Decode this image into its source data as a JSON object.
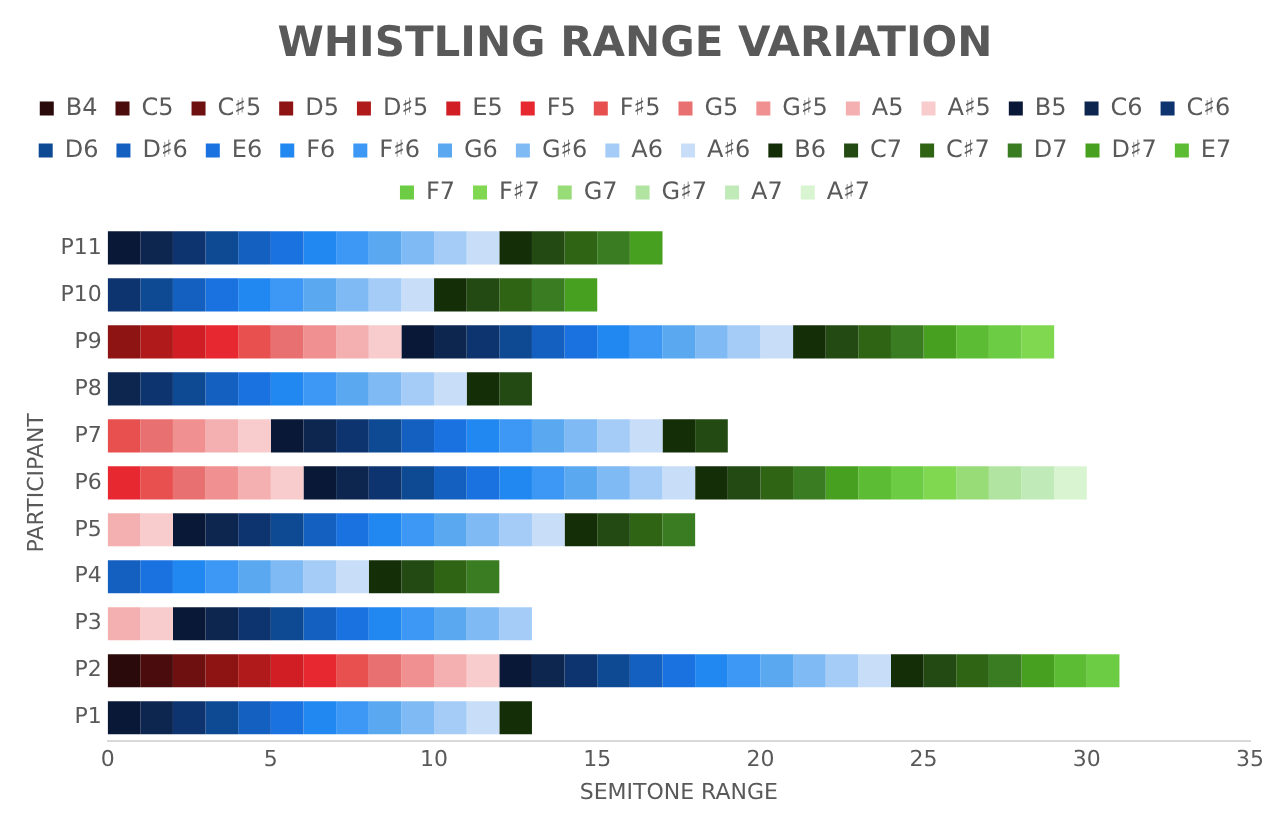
{
  "chart_data": {
    "type": "bar",
    "orientation": "horizontal",
    "stacked": true,
    "title": "WHISTLING RANGE VARIATION",
    "xlabel": "SEMITONE RANGE",
    "ylabel": "PARTICIPANT",
    "categories": [
      "P11",
      "P10",
      "P9",
      "P8",
      "P7",
      "P6",
      "P5",
      "P4",
      "P3",
      "P2",
      "P1"
    ],
    "xlim": [
      0,
      35
    ],
    "xticks": [
      0,
      5,
      10,
      15,
      20,
      25,
      30,
      35
    ],
    "grid": false,
    "legend": "top",
    "series": [
      {
        "name": "B4",
        "color": "#2a0a0a",
        "values": [
          null,
          null,
          null,
          null,
          null,
          null,
          null,
          null,
          null,
          1,
          null
        ]
      },
      {
        "name": "C5",
        "color": "#4a0c0c",
        "values": [
          null,
          null,
          null,
          null,
          null,
          null,
          null,
          null,
          null,
          1,
          null
        ]
      },
      {
        "name": "C♯5",
        "color": "#6e1010",
        "values": [
          null,
          null,
          null,
          null,
          null,
          null,
          null,
          null,
          null,
          1,
          null
        ]
      },
      {
        "name": "D5",
        "color": "#8e1414",
        "values": [
          null,
          null,
          1,
          null,
          null,
          null,
          null,
          null,
          null,
          1,
          null
        ]
      },
      {
        "name": "D♯5",
        "color": "#b01a1a",
        "values": [
          null,
          null,
          1,
          null,
          null,
          null,
          null,
          null,
          null,
          1,
          null
        ]
      },
      {
        "name": "E5",
        "color": "#d01e24",
        "values": [
          null,
          null,
          1,
          null,
          null,
          null,
          null,
          null,
          null,
          1,
          null
        ]
      },
      {
        "name": "F5",
        "color": "#e82830",
        "values": [
          null,
          null,
          1,
          null,
          null,
          1,
          null,
          null,
          null,
          1,
          null
        ]
      },
      {
        "name": "F♯5",
        "color": "#e85050",
        "values": [
          null,
          null,
          1,
          null,
          1,
          1,
          null,
          null,
          null,
          1,
          null
        ]
      },
      {
        "name": "G5",
        "color": "#e87070",
        "values": [
          null,
          null,
          1,
          null,
          1,
          1,
          null,
          null,
          null,
          1,
          null
        ]
      },
      {
        "name": "G♯5",
        "color": "#f09090",
        "values": [
          null,
          null,
          1,
          null,
          1,
          1,
          null,
          null,
          null,
          1,
          null
        ]
      },
      {
        "name": "A5",
        "color": "#f4b0b0",
        "values": [
          null,
          null,
          1,
          null,
          1,
          1,
          1,
          null,
          1,
          1,
          null
        ]
      },
      {
        "name": "A♯5",
        "color": "#f8cccc",
        "values": [
          null,
          null,
          1,
          null,
          1,
          1,
          1,
          null,
          1,
          1,
          null
        ]
      },
      {
        "name": "B5",
        "color": "#0a1838",
        "values": [
          1,
          null,
          1,
          null,
          1,
          1,
          1,
          null,
          1,
          1,
          1
        ]
      },
      {
        "name": "C6",
        "color": "#0c2650",
        "values": [
          1,
          null,
          1,
          1,
          1,
          1,
          1,
          null,
          1,
          1,
          1
        ]
      },
      {
        "name": "C♯6",
        "color": "#0e3470",
        "values": [
          1,
          1,
          1,
          1,
          1,
          1,
          1,
          null,
          1,
          1,
          1
        ]
      },
      {
        "name": "D6",
        "color": "#0e4a94",
        "values": [
          1,
          1,
          1,
          1,
          1,
          1,
          1,
          null,
          1,
          1,
          1
        ]
      },
      {
        "name": "D♯6",
        "color": "#1460c0",
        "values": [
          1,
          1,
          1,
          1,
          1,
          1,
          1,
          1,
          1,
          1,
          1
        ]
      },
      {
        "name": "E6",
        "color": "#1a72e0",
        "values": [
          1,
          1,
          1,
          1,
          1,
          1,
          1,
          1,
          1,
          1,
          1
        ]
      },
      {
        "name": "F6",
        "color": "#2088f0",
        "values": [
          1,
          1,
          1,
          1,
          1,
          1,
          1,
          1,
          1,
          1,
          1
        ]
      },
      {
        "name": "F♯6",
        "color": "#3c98f4",
        "values": [
          1,
          1,
          1,
          1,
          1,
          1,
          1,
          1,
          1,
          1,
          1
        ]
      },
      {
        "name": "G6",
        "color": "#5aa8f0",
        "values": [
          1,
          1,
          1,
          1,
          1,
          1,
          1,
          1,
          1,
          1,
          1
        ]
      },
      {
        "name": "G♯6",
        "color": "#80baf4",
        "values": [
          1,
          1,
          1,
          1,
          1,
          1,
          1,
          1,
          1,
          1,
          1
        ]
      },
      {
        "name": "A6",
        "color": "#a4ccf6",
        "values": [
          1,
          1,
          1,
          1,
          1,
          1,
          1,
          1,
          1,
          1,
          1
        ]
      },
      {
        "name": "A♯6",
        "color": "#c8def8",
        "values": [
          1,
          1,
          1,
          1,
          1,
          1,
          1,
          1,
          null,
          1,
          1
        ]
      },
      {
        "name": "B6",
        "color": "#142e08",
        "values": [
          1,
          1,
          1,
          1,
          1,
          1,
          1,
          1,
          null,
          1,
          1
        ]
      },
      {
        "name": "C7",
        "color": "#224a12",
        "values": [
          1,
          1,
          1,
          1,
          1,
          1,
          1,
          1,
          null,
          1,
          null
        ]
      },
      {
        "name": "C♯7",
        "color": "#2e6414",
        "values": [
          1,
          1,
          1,
          null,
          null,
          1,
          1,
          1,
          null,
          1,
          null
        ]
      },
      {
        "name": "D7",
        "color": "#3a7c22",
        "values": [
          1,
          1,
          1,
          null,
          null,
          1,
          1,
          1,
          null,
          1,
          null
        ]
      },
      {
        "name": "D♯7",
        "color": "#48a020",
        "values": [
          1,
          1,
          1,
          null,
          null,
          1,
          null,
          null,
          null,
          1,
          null
        ]
      },
      {
        "name": "E7",
        "color": "#5cbc34",
        "values": [
          null,
          null,
          1,
          null,
          null,
          1,
          null,
          null,
          null,
          1,
          null
        ]
      },
      {
        "name": "F7",
        "color": "#6ccc44",
        "values": [
          null,
          null,
          1,
          null,
          null,
          1,
          null,
          null,
          null,
          1,
          null
        ]
      },
      {
        "name": "F♯7",
        "color": "#80d850",
        "values": [
          null,
          null,
          1,
          null,
          null,
          1,
          null,
          null,
          null,
          null,
          null
        ]
      },
      {
        "name": "G7",
        "color": "#98dc78",
        "values": [
          null,
          null,
          null,
          null,
          null,
          1,
          null,
          null,
          null,
          null,
          null
        ]
      },
      {
        "name": "G♯7",
        "color": "#b0e4a0",
        "values": [
          null,
          null,
          null,
          null,
          null,
          1,
          null,
          null,
          null,
          null,
          null
        ]
      },
      {
        "name": "A7",
        "color": "#c0eab8",
        "values": [
          null,
          null,
          null,
          null,
          null,
          1,
          null,
          null,
          null,
          null,
          null
        ]
      },
      {
        "name": "A♯7",
        "color": "#d8f4d0",
        "values": [
          null,
          null,
          null,
          null,
          null,
          1,
          null,
          null,
          null,
          null,
          null
        ]
      }
    ]
  }
}
